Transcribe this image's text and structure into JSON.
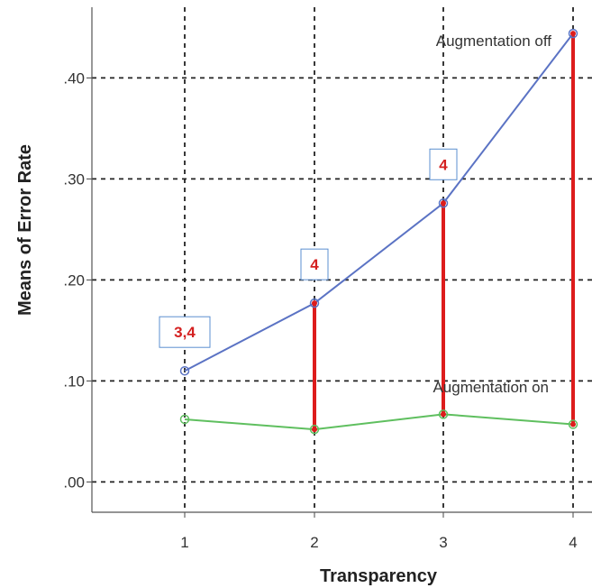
{
  "chart_data": {
    "type": "line",
    "xlabel": "Transparency",
    "ylabel": "Means of Error Rate",
    "categories": [
      "1",
      "2",
      "3",
      "4"
    ],
    "ylim": [
      -0.03,
      0.47
    ],
    "y_ticks": [
      0.0,
      0.1,
      0.2,
      0.3,
      0.4
    ],
    "y_tick_labels": [
      ".00",
      ".10",
      ".20",
      ".30",
      ".40"
    ],
    "grid": "dashed",
    "series": [
      {
        "name": "Augmentation off",
        "values": [
          0.11,
          0.177,
          0.276,
          0.444
        ],
        "color": "#5b73c4"
      },
      {
        "name": "Augmentation on",
        "values": [
          0.062,
          0.052,
          0.067,
          0.057
        ],
        "color": "#5fbf5f"
      }
    ],
    "annotations": [
      {
        "x": "1",
        "label": "3,4"
      },
      {
        "x": "2",
        "label": "4"
      },
      {
        "x": "3",
        "label": "4"
      }
    ],
    "difference_bars": {
      "color": "#dd1c1c",
      "categories": [
        "2",
        "3",
        "4"
      ]
    }
  }
}
